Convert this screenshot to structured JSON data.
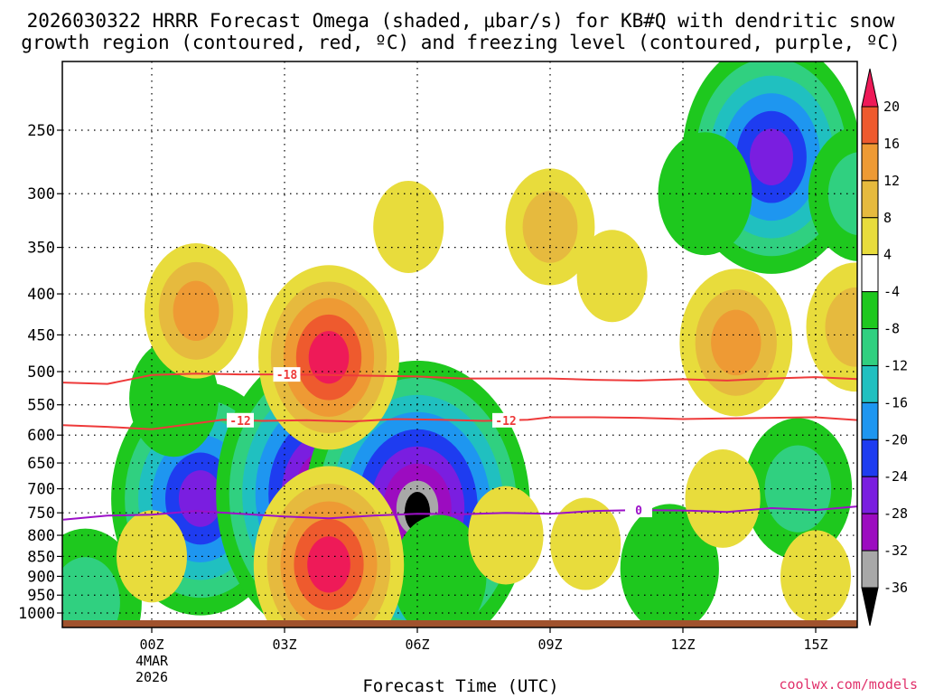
{
  "chart_data": {
    "type": "heatmap",
    "title_line1": "2026030322 HRRR Forecast Omega (shaded, μbar/s) for KB#Q with dendritic snow",
    "title_line2": "growth region (contoured, red, ºC) and freezing level (contoured, purple, ºC)",
    "xlabel": "Forecast Time (UTC)",
    "ylabel": "",
    "credit": "coolwx.com/models",
    "x_range_hours": [
      -2.0,
      16.0
    ],
    "y_range_hpa": [
      1020,
      200
    ],
    "x_ticks": [
      {
        "hour": 0,
        "label": "00Z",
        "sub1": "4MAR",
        "sub2": "2026"
      },
      {
        "hour": 3,
        "label": "03Z"
      },
      {
        "hour": 6,
        "label": "06Z"
      },
      {
        "hour": 9,
        "label": "09Z"
      },
      {
        "hour": 12,
        "label": "12Z"
      },
      {
        "hour": 15,
        "label": "15Z"
      }
    ],
    "y_ticks": [
      250,
      300,
      350,
      400,
      450,
      500,
      550,
      600,
      650,
      700,
      750,
      800,
      850,
      900,
      950,
      1000
    ],
    "colorbar": {
      "labels": [
        "20",
        "16",
        "12",
        "8",
        "4",
        "-4",
        "-8",
        "-12",
        "-16",
        "-20",
        "-24",
        "-28",
        "-32",
        "-36"
      ],
      "colors": [
        "#ee1a58",
        "#ee5a2e",
        "#ee9a34",
        "#e6ba3e",
        "#e8dc3c",
        "#ffffff",
        "#1ec81e",
        "#30d080",
        "#20c0c0",
        "#1e96f0",
        "#1e3cf0",
        "#7a1ee0",
        "#9c0cc0",
        "#a8a8a8",
        "#000000"
      ]
    },
    "shading_levels": {
      "pos": [
        4,
        8,
        12,
        16,
        20
      ],
      "neg": [
        -8,
        -12,
        -16,
        -20,
        -24,
        -28,
        -32,
        -36
      ]
    },
    "omega_features": [
      {
        "name": "ascent-0030z-low",
        "hour": -1.5,
        "hpa": 970,
        "peak": -14
      },
      {
        "name": "ascent-01z-700",
        "hour": 1.1,
        "hpa": 720,
        "peak": -28
      },
      {
        "name": "ascent-01z-upper",
        "hour": 0.5,
        "hpa": 540,
        "peak": -9
      },
      {
        "name": "ascent-04z-700",
        "hour": 4.0,
        "hpa": 710,
        "peak": -38
      },
      {
        "name": "ascent-06z-700",
        "hour": 6.0,
        "hpa": 740,
        "peak": -38
      },
      {
        "name": "ascent-06z-low",
        "hour": 6.5,
        "hpa": 900,
        "peak": -10
      },
      {
        "name": "ascent-14z-260",
        "hour": 14.0,
        "hpa": 270,
        "peak": -28
      },
      {
        "name": "ascent-12z-300",
        "hour": 12.5,
        "hpa": 300,
        "peak": -10
      },
      {
        "name": "ascent-14z-700",
        "hour": 14.6,
        "hpa": 700,
        "peak": -13
      },
      {
        "name": "ascent-11z-880",
        "hour": 11.7,
        "hpa": 880,
        "peak": -11
      },
      {
        "name": "ascent-16z-300",
        "hour": 16.0,
        "hpa": 300,
        "peak": -12
      },
      {
        "name": "descent-01z-420",
        "hour": 1.0,
        "hpa": 420,
        "peak": 12
      },
      {
        "name": "descent-04z-480",
        "hour": 4.0,
        "hpa": 480,
        "peak": 20
      },
      {
        "name": "descent-04z-880",
        "hour": 4.0,
        "hpa": 870,
        "peak": 22
      },
      {
        "name": "descent-06z-320",
        "hour": 5.8,
        "hpa": 330,
        "peak": 5
      },
      {
        "name": "descent-09z-330",
        "hour": 9.0,
        "hpa": 330,
        "peak": 9
      },
      {
        "name": "descent-10z-380",
        "hour": 10.4,
        "hpa": 380,
        "peak": 5
      },
      {
        "name": "descent-13z-450",
        "hour": 13.2,
        "hpa": 460,
        "peak": 14
      },
      {
        "name": "descent-13z-700",
        "hour": 12.9,
        "hpa": 720,
        "peak": 6
      },
      {
        "name": "descent-16z-420",
        "hour": 15.9,
        "hpa": 440,
        "peak": 11
      },
      {
        "name": "descent-0z-850",
        "hour": 0.0,
        "hpa": 850,
        "peak": 5
      },
      {
        "name": "descent-8z-800",
        "hour": 8.0,
        "hpa": 800,
        "peak": 6
      },
      {
        "name": "descent-10z-820",
        "hour": 9.8,
        "hpa": 820,
        "peak": 5
      },
      {
        "name": "descent-15z-900",
        "hour": 15.0,
        "hpa": 900,
        "peak": 5
      }
    ],
    "contours": [
      {
        "name": "minus-18C",
        "label": "-18",
        "color": "#ee3a3a",
        "label_hour": 3.05,
        "points": [
          [
            -2.0,
            516
          ],
          [
            -1.0,
            518
          ],
          [
            0.0,
            505
          ],
          [
            1.0,
            503
          ],
          [
            2.0,
            504
          ],
          [
            3.0,
            504
          ],
          [
            4.0,
            505
          ],
          [
            5.0,
            506
          ],
          [
            6.0,
            507
          ],
          [
            7.0,
            510
          ],
          [
            8.0,
            510
          ],
          [
            9.0,
            510
          ],
          [
            10.0,
            512
          ],
          [
            11.0,
            513
          ],
          [
            12.0,
            511
          ],
          [
            13.0,
            513
          ],
          [
            14.0,
            510
          ],
          [
            15.0,
            508
          ],
          [
            16.0,
            511
          ]
        ]
      },
      {
        "name": "minus-12C",
        "label": "-12",
        "color": "#ee3a3a",
        "label_hour": 2.0,
        "label_hour_2": 8.0,
        "points": [
          [
            -2.0,
            583
          ],
          [
            -1.0,
            586
          ],
          [
            0.0,
            590
          ],
          [
            1.0,
            580
          ],
          [
            1.6,
            574
          ],
          [
            2.5,
            576
          ],
          [
            3.5,
            575
          ],
          [
            4.5,
            577
          ],
          [
            5.5,
            573
          ],
          [
            6.5,
            574
          ],
          [
            7.5,
            576
          ],
          [
            8.5,
            574
          ],
          [
            9.0,
            570
          ],
          [
            10.0,
            570
          ],
          [
            11.0,
            571
          ],
          [
            12.0,
            573
          ],
          [
            13.0,
            572
          ],
          [
            14.0,
            571
          ],
          [
            15.0,
            570
          ],
          [
            16.0,
            575
          ]
        ]
      },
      {
        "name": "zero-C",
        "label": "0",
        "color": "#9c10c8",
        "label_hour": 11.0,
        "points": [
          [
            -2.0,
            765
          ],
          [
            -1.0,
            756
          ],
          [
            0.0,
            754
          ],
          [
            1.0,
            746
          ],
          [
            2.0,
            752
          ],
          [
            3.0,
            758
          ],
          [
            4.0,
            762
          ],
          [
            5.0,
            756
          ],
          [
            6.0,
            752
          ],
          [
            7.0,
            753
          ],
          [
            8.0,
            750
          ],
          [
            9.0,
            752
          ],
          [
            10.0,
            746
          ],
          [
            11.0,
            744
          ],
          [
            12.0,
            745
          ],
          [
            13.0,
            748
          ],
          [
            14.0,
            740
          ],
          [
            15.0,
            744
          ],
          [
            16.0,
            736
          ]
        ]
      }
    ]
  }
}
